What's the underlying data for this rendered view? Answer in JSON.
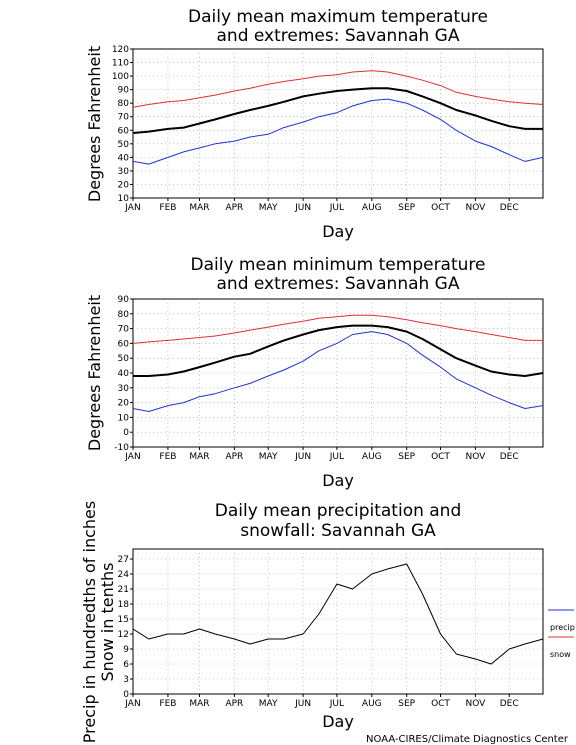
{
  "credit": "NOAA-CIRES/Climate Diagnostics Center",
  "colors": {
    "mean": "#000000",
    "max": "#e03030",
    "min": "#1f32d6",
    "grid": "#9a9a9a"
  },
  "chart_data": [
    {
      "type": "line",
      "title": [
        "Daily mean maximum temperature",
        "and extremes: Savannah GA"
      ],
      "xlabel": "Day",
      "ylabel": "Degrees Fahrenheit",
      "months": [
        "JAN",
        "FEB",
        "MAR",
        "APR",
        "MAY",
        "JUN",
        "JUL",
        "AUG",
        "SEP",
        "OCT",
        "NOV",
        "DEC"
      ],
      "ylim": [
        10,
        120
      ],
      "yticks": [
        10,
        20,
        30,
        40,
        50,
        60,
        70,
        80,
        90,
        100,
        110,
        120
      ],
      "grid": true,
      "x_day": [
        1,
        15,
        32,
        46,
        60,
        74,
        91,
        105,
        121,
        135,
        152,
        166,
        182,
        196,
        213,
        227,
        244,
        258,
        274,
        288,
        305,
        319,
        335,
        349,
        365
      ],
      "series": [
        {
          "key": "mean",
          "values": [
            58,
            59,
            61,
            62,
            65,
            68,
            72,
            75,
            78,
            81,
            85,
            87,
            89,
            90,
            91,
            91,
            89,
            85,
            80,
            75,
            71,
            67,
            63,
            61,
            61
          ]
        },
        {
          "key": "max",
          "values": [
            77,
            79,
            81,
            82,
            84,
            86,
            89,
            91,
            94,
            96,
            98,
            100,
            101,
            103,
            104,
            103,
            100,
            97,
            93,
            88,
            85,
            83,
            81,
            80,
            79
          ]
        },
        {
          "key": "min",
          "values": [
            37,
            35,
            40,
            44,
            47,
            50,
            52,
            55,
            57,
            62,
            66,
            70,
            73,
            78,
            82,
            83,
            80,
            75,
            68,
            60,
            52,
            48,
            42,
            37,
            40
          ]
        }
      ]
    },
    {
      "type": "line",
      "title": [
        "Daily mean minimum temperature",
        "and extremes: Savannah GA"
      ],
      "xlabel": "Day",
      "ylabel": "Degrees Fahrenheit",
      "months": [
        "JAN",
        "FEB",
        "MAR",
        "APR",
        "MAY",
        "JUN",
        "JUL",
        "AUG",
        "SEP",
        "OCT",
        "NOV",
        "DEC"
      ],
      "ylim": [
        -10,
        90
      ],
      "yticks": [
        -10,
        0,
        10,
        20,
        30,
        40,
        50,
        60,
        70,
        80,
        90
      ],
      "grid": true,
      "x_day": [
        1,
        15,
        32,
        46,
        60,
        74,
        91,
        105,
        121,
        135,
        152,
        166,
        182,
        196,
        213,
        227,
        244,
        258,
        274,
        288,
        305,
        319,
        335,
        349,
        365
      ],
      "series": [
        {
          "key": "mean",
          "values": [
            38,
            38,
            39,
            41,
            44,
            47,
            51,
            53,
            58,
            62,
            66,
            69,
            71,
            72,
            72,
            71,
            68,
            63,
            56,
            50,
            45,
            41,
            39,
            38,
            40
          ]
        },
        {
          "key": "max",
          "values": [
            60,
            61,
            62,
            63,
            64,
            65,
            67,
            69,
            71,
            73,
            75,
            77,
            78,
            79,
            79,
            78,
            76,
            74,
            72,
            70,
            68,
            66,
            64,
            62,
            62
          ]
        },
        {
          "key": "min",
          "values": [
            16,
            14,
            18,
            20,
            24,
            26,
            30,
            33,
            38,
            42,
            48,
            55,
            60,
            66,
            68,
            66,
            60,
            52,
            44,
            36,
            30,
            25,
            20,
            16,
            18
          ]
        }
      ]
    },
    {
      "type": "line",
      "title": [
        "Daily mean precipitation and",
        "snowfall: Savannah GA"
      ],
      "xlabel": "Day",
      "ylabel": [
        "Precip in hundredths of inches",
        "Snow in tenths"
      ],
      "months": [
        "JAN",
        "FEB",
        "MAR",
        "APR",
        "MAY",
        "JUN",
        "JUL",
        "AUG",
        "SEP",
        "OCT",
        "NOV",
        "DEC"
      ],
      "ylim": [
        0,
        29
      ],
      "yticks": [
        0,
        3,
        6,
        9,
        12,
        15,
        18,
        21,
        24,
        27
      ],
      "grid": true,
      "legend": "right",
      "x_day": [
        1,
        15,
        32,
        46,
        60,
        74,
        91,
        105,
        121,
        135,
        152,
        166,
        182,
        196,
        213,
        227,
        244,
        258,
        274,
        288,
        305,
        319,
        335,
        349,
        365
      ],
      "series": [
        {
          "key": "precip",
          "name": "precip",
          "values": [
            13,
            11,
            12,
            12,
            13,
            12,
            11,
            10,
            11,
            11,
            12,
            16,
            22,
            21,
            24,
            25,
            26,
            20,
            12,
            8,
            7,
            6,
            9,
            10,
            11
          ]
        },
        {
          "key": "snow",
          "name": "snow",
          "values": [
            0,
            0,
            0,
            0,
            0,
            0,
            0,
            0,
            0,
            0,
            0,
            0,
            0,
            0,
            0,
            0,
            0,
            0,
            0,
            0,
            0,
            0,
            0,
            0,
            0
          ]
        }
      ]
    }
  ]
}
